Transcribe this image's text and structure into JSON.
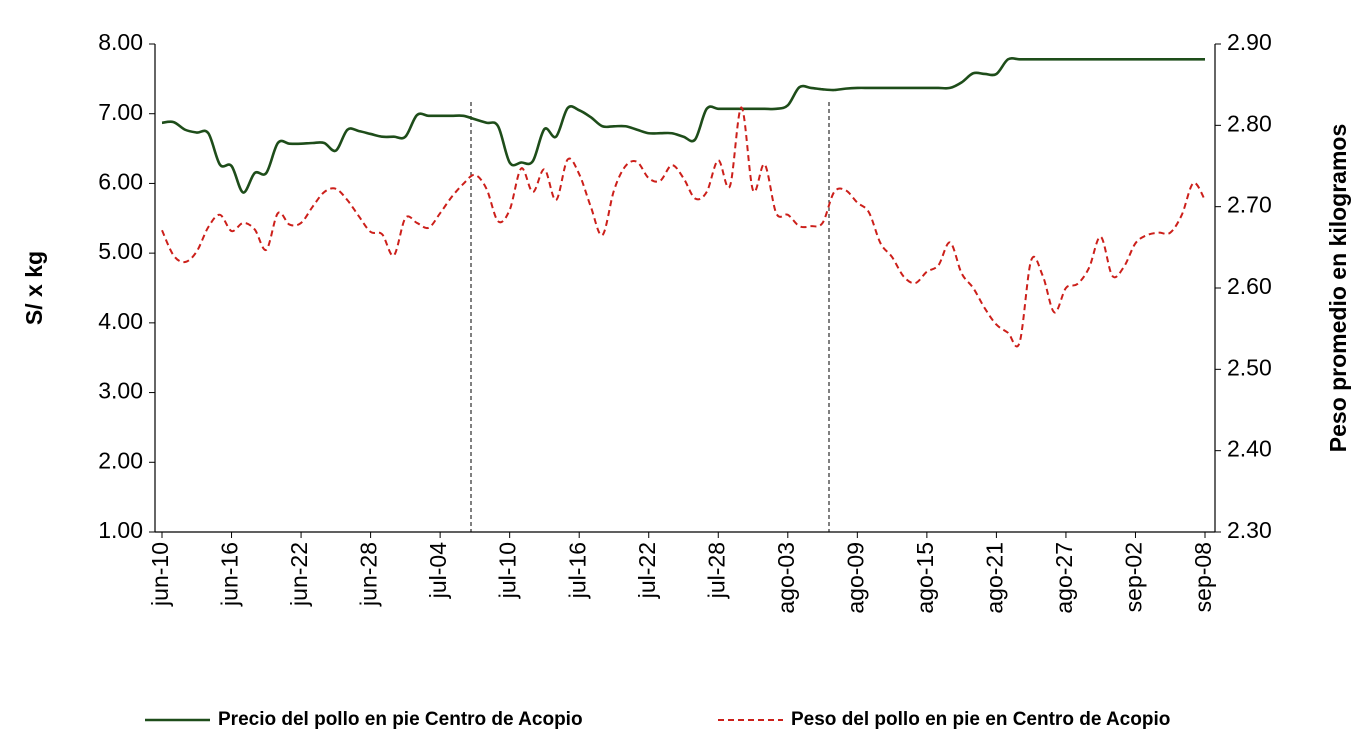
{
  "chart_data": {
    "type": "line",
    "categories": [
      "jun-10",
      null,
      null,
      null,
      null,
      null,
      "jun-16",
      null,
      null,
      null,
      null,
      null,
      "jun-22",
      null,
      null,
      null,
      null,
      null,
      "jun-28",
      null,
      null,
      null,
      null,
      null,
      "jul-04",
      null,
      null,
      null,
      null,
      null,
      "jul-10",
      null,
      null,
      null,
      null,
      null,
      "jul-16",
      null,
      null,
      null,
      null,
      null,
      "jul-22",
      null,
      null,
      null,
      null,
      null,
      "jul-28",
      null,
      null,
      null,
      null,
      null,
      "ago-03",
      null,
      null,
      null,
      null,
      null,
      "ago-09",
      null,
      null,
      null,
      null,
      null,
      "ago-15",
      null,
      null,
      null,
      null,
      null,
      "ago-21",
      null,
      null,
      null,
      null,
      null,
      "ago-27",
      null,
      null,
      null,
      null,
      null,
      "sep-02",
      null,
      null,
      null,
      null,
      null,
      "sep-08"
    ],
    "y_label": "S/  x  kg",
    "y2_label": "Peso promedio en kilogramos",
    "ylim": [
      1,
      8
    ],
    "yticks": [
      {
        "value": 1,
        "label": "1.00"
      },
      {
        "value": 2,
        "label": "2.00"
      },
      {
        "value": 3,
        "label": "3.00"
      },
      {
        "value": 4,
        "label": "4.00"
      },
      {
        "value": 5,
        "label": "5.00"
      },
      {
        "value": 6,
        "label": "6.00"
      },
      {
        "value": 7,
        "label": "7.00"
      },
      {
        "value": 8,
        "label": "8.00"
      }
    ],
    "y2lim": [
      2.3,
      2.9
    ],
    "y2ticks": [
      {
        "value": 2.3,
        "label": "2.30"
      },
      {
        "value": 2.4,
        "label": "2.40"
      },
      {
        "value": 2.5,
        "label": "2.50"
      },
      {
        "value": 2.6,
        "label": "2.60"
      },
      {
        "value": 2.7,
        "label": "2.70"
      },
      {
        "value": 2.8,
        "label": "2.80"
      },
      {
        "value": 2.9,
        "label": "2.90"
      }
    ],
    "series": [
      {
        "name": "Precio del pollo en pie Centro de Acopio",
        "color": "#1e4d1a",
        "dash": false,
        "values": [
          6.87,
          6.88,
          6.77,
          6.73,
          6.72,
          6.27,
          6.25,
          5.87,
          6.15,
          6.15,
          6.58,
          6.57,
          6.57,
          6.58,
          6.58,
          6.47,
          6.77,
          6.75,
          6.71,
          6.67,
          6.67,
          6.67,
          6.98,
          6.97,
          6.97,
          6.97,
          6.97,
          6.92,
          6.87,
          6.82,
          6.3,
          6.3,
          6.32,
          6.78,
          6.67,
          7.08,
          7.05,
          6.95,
          6.82,
          6.82,
          6.82,
          6.77,
          6.72,
          6.72,
          6.72,
          6.67,
          6.63,
          7.07,
          7.07,
          7.07,
          7.07,
          7.07,
          7.07,
          7.07,
          7.12,
          7.38,
          7.37,
          7.35,
          7.34,
          7.36,
          7.37,
          7.37,
          7.37,
          7.37,
          7.37,
          7.37,
          7.37,
          7.37,
          7.37,
          7.45,
          7.58,
          7.57,
          7.57,
          7.78,
          7.78,
          7.78,
          7.78,
          7.78,
          7.78,
          7.78,
          7.78,
          7.78,
          7.78,
          7.78,
          7.78,
          7.78,
          7.78,
          7.78,
          7.78,
          7.78,
          7.78
        ]
      },
      {
        "name": "Peso del pollo en pie en Centro de Acopio",
        "color": "#cc1f1a",
        "dash": true,
        "axis": "y2",
        "values": [
          2.671,
          2.64,
          2.632,
          2.645,
          2.675,
          2.69,
          2.67,
          2.68,
          2.672,
          2.647,
          2.692,
          2.678,
          2.68,
          2.7,
          2.718,
          2.722,
          2.708,
          2.688,
          2.669,
          2.666,
          2.64,
          2.686,
          2.68,
          2.674,
          2.692,
          2.712,
          2.728,
          2.739,
          2.722,
          2.682,
          2.696,
          2.747,
          2.718,
          2.746,
          2.708,
          2.758,
          2.74,
          2.7,
          2.665,
          2.72,
          2.75,
          2.755,
          2.735,
          2.732,
          2.751,
          2.735,
          2.71,
          2.718,
          2.757,
          2.725,
          2.822,
          2.72,
          2.752,
          2.692,
          2.69,
          2.676,
          2.676,
          2.68,
          2.718,
          2.72,
          2.705,
          2.693,
          2.655,
          2.638,
          2.614,
          2.606,
          2.62,
          2.628,
          2.656,
          2.618,
          2.6,
          2.575,
          2.555,
          2.545,
          2.533,
          2.634,
          2.615,
          2.57,
          2.6,
          2.605,
          2.625,
          2.663,
          2.615,
          2.626,
          2.655,
          2.665,
          2.668,
          2.668,
          2.69,
          2.729,
          2.708
        ]
      }
    ]
  }
}
